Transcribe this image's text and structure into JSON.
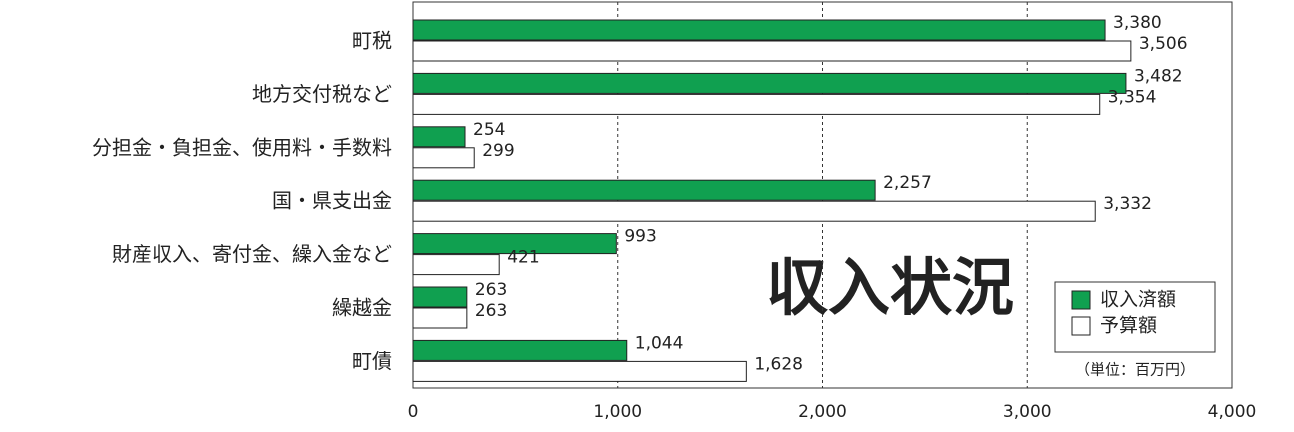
{
  "chart_data": {
    "type": "bar",
    "orientation": "horizontal",
    "title": "収入状況",
    "note": "（単位：百万円）",
    "categories": [
      "町税",
      "地方交付税など",
      "分担金・負担金、使用料・手数料",
      "国・県支出金",
      "財産収入、寄付金、繰入金など",
      "繰越金",
      "町債"
    ],
    "series": [
      {
        "name": "収入済額",
        "color": "#10a050",
        "values": [
          3380,
          3482,
          254,
          2257,
          993,
          263,
          1044
        ],
        "value_labels": [
          "3,380",
          "3,482",
          "254",
          "2,257",
          "993",
          "263",
          "1,044"
        ]
      },
      {
        "name": "予算額",
        "color": "#ffffff",
        "values": [
          3506,
          3354,
          299,
          3332,
          421,
          263,
          1628
        ],
        "value_labels": [
          "3,506",
          "3,354",
          "299",
          "3,332",
          "421",
          "263",
          "1,628"
        ]
      }
    ],
    "xlim": [
      0,
      4000
    ],
    "xticks": [
      0,
      {
        "value": 1000,
        "label": "1,000"
      },
      {
        "value": 2000,
        "label": "2,000"
      },
      {
        "value": 3000,
        "label": "3,000"
      },
      {
        "value": 4000,
        "label": "4,000"
      }
    ],
    "grid": true,
    "legend": "lower right"
  }
}
